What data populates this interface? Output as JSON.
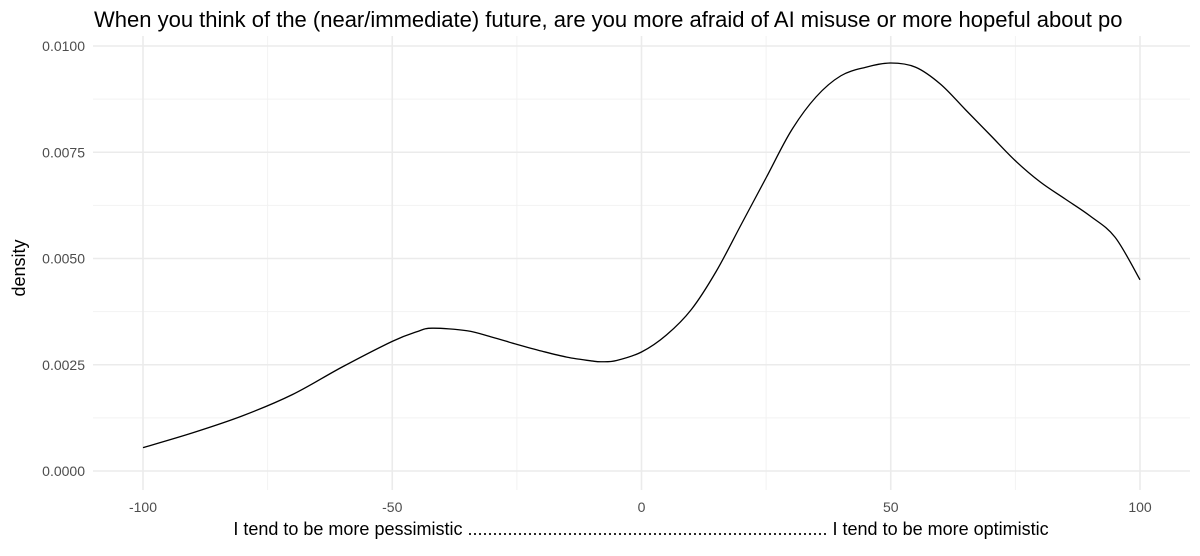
{
  "chart_data": {
    "type": "line",
    "title": "When you think of the (near/immediate) future, are you more afraid of AI misuse or more hopeful about po",
    "xlabel": "I tend to be more pessimistic  ........................................................................  I tend to be more optimistic",
    "ylabel": "density",
    "xlim": [
      -100,
      100
    ],
    "ylim": [
      0,
      0.01
    ],
    "x_ticks": [
      -100,
      -50,
      0,
      50,
      100
    ],
    "x_tick_labels": [
      "-100",
      "-50",
      "0",
      "50",
      "100"
    ],
    "y_ticks": [
      0,
      0.0025,
      0.005,
      0.0075,
      0.01
    ],
    "y_tick_labels": [
      "0.0000",
      "0.0025",
      "0.0050",
      "0.0075",
      "0.0100"
    ],
    "grid": true,
    "legend": "none",
    "series": [
      {
        "x": [
          -100,
          -90,
          -80,
          -70,
          -60,
          -50,
          -45,
          -42,
          -35,
          -30,
          -25,
          -20,
          -15,
          -10,
          -8,
          -5,
          0,
          5,
          10,
          15,
          20,
          25,
          30,
          35,
          40,
          45,
          50,
          55,
          60,
          65,
          70,
          75,
          80,
          85,
          90,
          95,
          100
        ],
        "y": [
          0.00055,
          0.0009,
          0.0013,
          0.0018,
          0.00245,
          0.00305,
          0.00328,
          0.00336,
          0.0033,
          0.00315,
          0.00298,
          0.00282,
          0.00268,
          0.00259,
          0.00257,
          0.0026,
          0.0028,
          0.0032,
          0.0038,
          0.0047,
          0.0058,
          0.0069,
          0.008,
          0.0088,
          0.0093,
          0.0095,
          0.0096,
          0.0095,
          0.0091,
          0.0085,
          0.0079,
          0.0073,
          0.0068,
          0.0064,
          0.006,
          0.0055,
          0.0045
        ],
        "color": "#000000"
      }
    ]
  }
}
